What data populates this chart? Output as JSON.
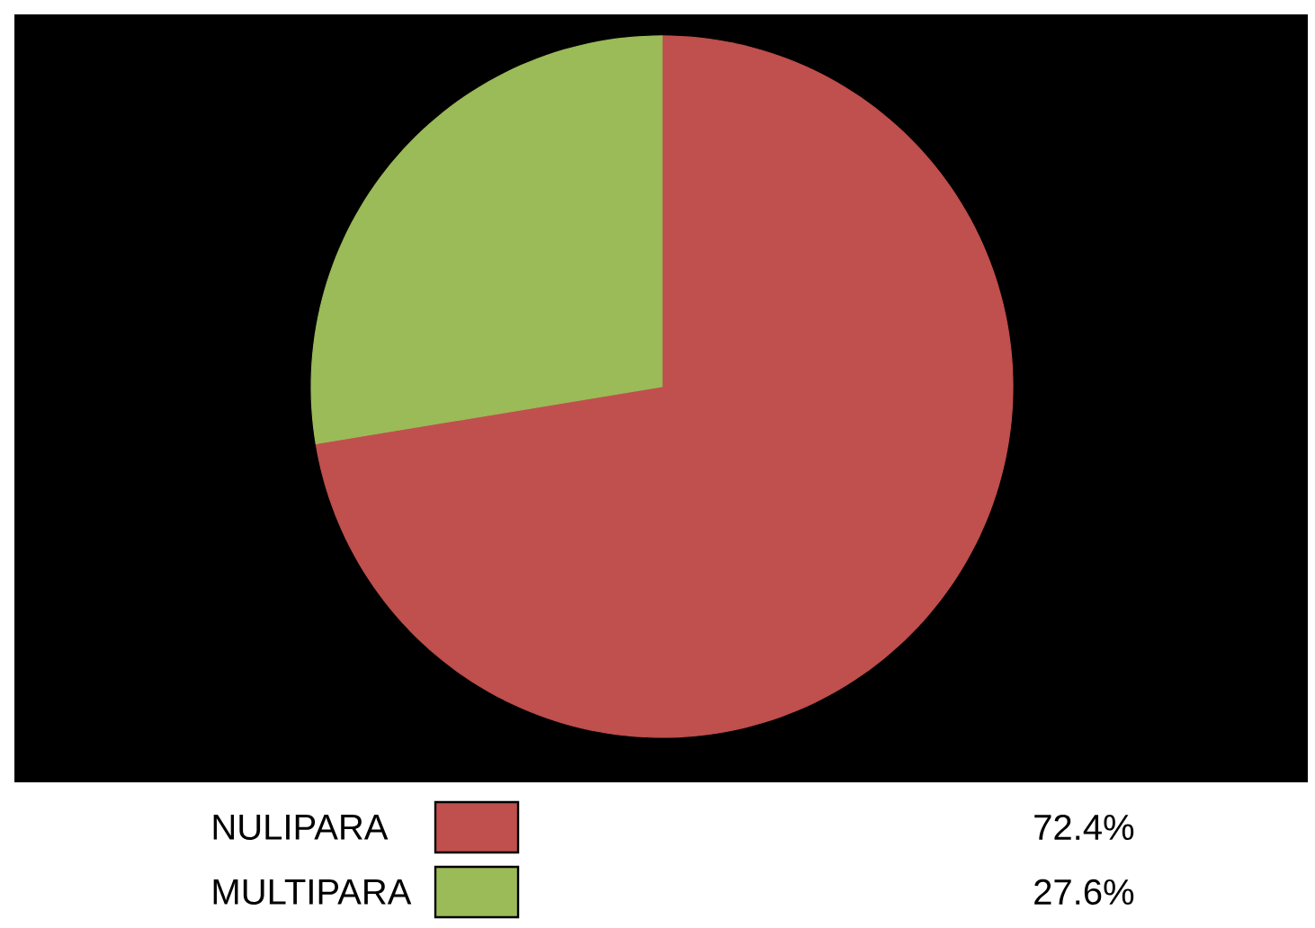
{
  "chart_data": {
    "type": "pie",
    "categories": [
      "NULIPARA",
      "MULTIPARA"
    ],
    "values": [
      72.4,
      27.6
    ],
    "colors": [
      "#c0504d",
      "#9bbb59"
    ],
    "value_labels": [
      "72.4%",
      "27.6%"
    ],
    "legend": "bottom"
  }
}
